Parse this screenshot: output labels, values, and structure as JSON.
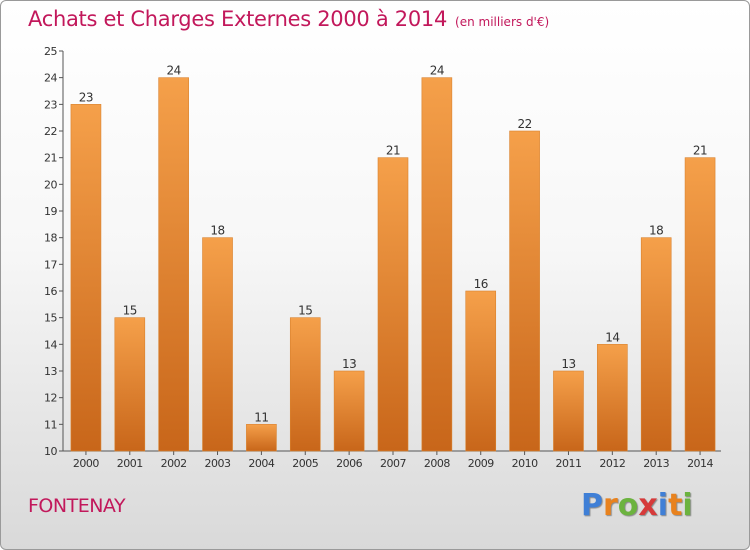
{
  "title": "Achats et Charges Externes 2000 à 2014",
  "subtitle": "(en milliers d'€)",
  "location": "FONTENAY",
  "logo": {
    "letters": [
      "P",
      "r",
      "o",
      "x",
      "i",
      "t",
      "i"
    ],
    "colors": [
      "#3f7fd6",
      "#e8821e",
      "#6cb33f",
      "#d63a3a",
      "#3f7fd6",
      "#e8821e",
      "#6cb33f"
    ]
  },
  "colors": {
    "bar": "#f0953a",
    "bar_dark": "#c8661a",
    "title": "#c2185b"
  },
  "chart_data": {
    "type": "bar",
    "title": "Achats et Charges Externes 2000 à 2014",
    "subtitle": "(en milliers d'€)",
    "categories": [
      "2000",
      "2001",
      "2002",
      "2003",
      "2004",
      "2005",
      "2006",
      "2007",
      "2008",
      "2009",
      "2010",
      "2011",
      "2012",
      "2013",
      "2014"
    ],
    "values": [
      23,
      15,
      24,
      18,
      11,
      15,
      13,
      21,
      24,
      16,
      22,
      13,
      14,
      18,
      21
    ],
    "ylim": [
      10,
      25
    ],
    "yticks": [
      10,
      11,
      12,
      13,
      14,
      15,
      16,
      17,
      18,
      19,
      20,
      21,
      22,
      23,
      24,
      25
    ],
    "grid": false,
    "legend": "none"
  }
}
